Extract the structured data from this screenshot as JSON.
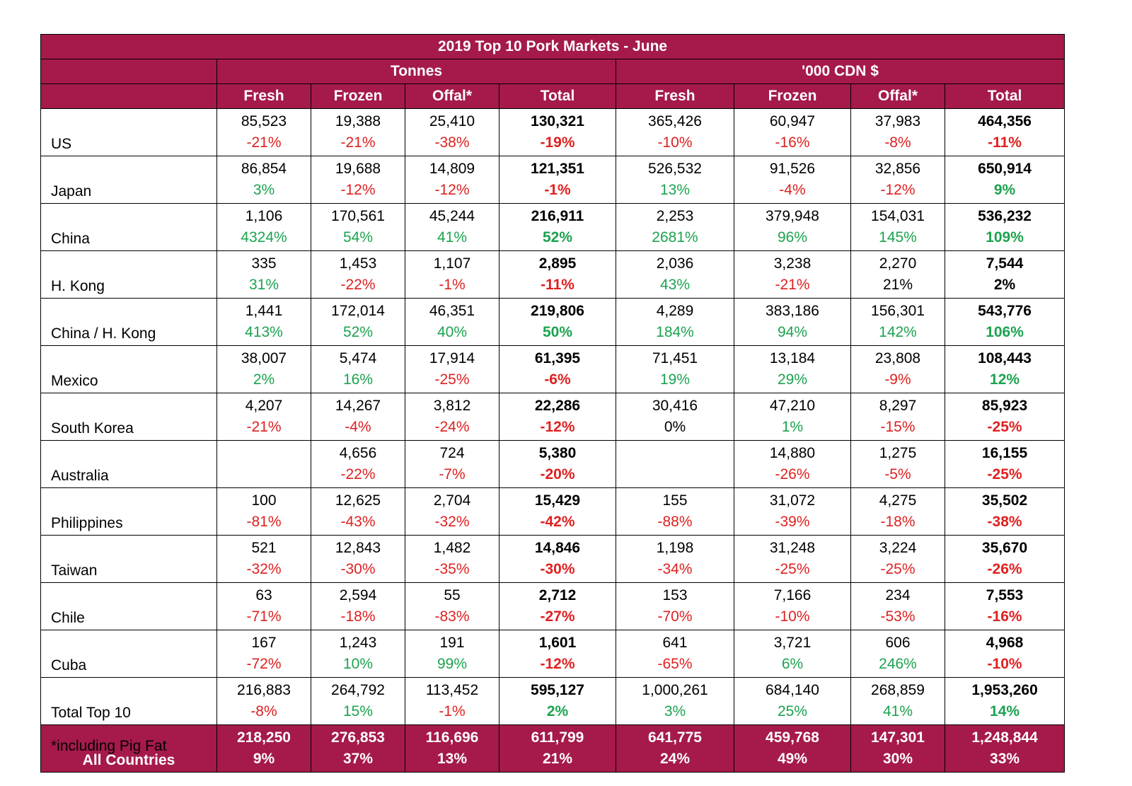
{
  "title": "2019 Top 10 Pork Markets - June",
  "groups": [
    "Tonnes",
    "'000 CDN $"
  ],
  "columns": [
    "Fresh",
    "Frozen",
    "Offal*",
    "Total",
    "Fresh",
    "Frozen",
    "Offal*",
    "Total"
  ],
  "colors": {
    "header_bg": "#A51A4B",
    "negative": "#E02020",
    "positive": "#1BA34F"
  },
  "rows": [
    {
      "country": "US",
      "cells": [
        {
          "v": "85,523",
          "p": "-21%",
          "s": "neg"
        },
        {
          "v": "19,388",
          "p": "-21%",
          "s": "neg"
        },
        {
          "v": "25,410",
          "p": "-38%",
          "s": "neg"
        },
        {
          "v": "130,321",
          "p": "-19%",
          "s": "neg"
        },
        {
          "v": "365,426",
          "p": "-10%",
          "s": "neg"
        },
        {
          "v": "60,947",
          "p": "-16%",
          "s": "neg"
        },
        {
          "v": "37,983",
          "p": "-8%",
          "s": "neg"
        },
        {
          "v": "464,356",
          "p": "-11%",
          "s": "neg"
        }
      ]
    },
    {
      "country": "Japan",
      "cells": [
        {
          "v": "86,854",
          "p": "3%",
          "s": "pos"
        },
        {
          "v": "19,688",
          "p": "-12%",
          "s": "neg"
        },
        {
          "v": "14,809",
          "p": "-12%",
          "s": "neg"
        },
        {
          "v": "121,351",
          "p": "-1%",
          "s": "neg"
        },
        {
          "v": "526,532",
          "p": "13%",
          "s": "pos"
        },
        {
          "v": "91,526",
          "p": "-4%",
          "s": "neg"
        },
        {
          "v": "32,856",
          "p": "-12%",
          "s": "neg"
        },
        {
          "v": "650,914",
          "p": "9%",
          "s": "pos"
        }
      ]
    },
    {
      "country": "China",
      "cells": [
        {
          "v": "1,106",
          "p": "4324%",
          "s": "pos"
        },
        {
          "v": "170,561",
          "p": "54%",
          "s": "pos"
        },
        {
          "v": "45,244",
          "p": "41%",
          "s": "pos"
        },
        {
          "v": "216,911",
          "p": "52%",
          "s": "pos"
        },
        {
          "v": "2,253",
          "p": "2681%",
          "s": "pos"
        },
        {
          "v": "379,948",
          "p": "96%",
          "s": "pos"
        },
        {
          "v": "154,031",
          "p": "145%",
          "s": "pos"
        },
        {
          "v": "536,232",
          "p": "109%",
          "s": "pos"
        }
      ]
    },
    {
      "country": "H. Kong",
      "cells": [
        {
          "v": "335",
          "p": "31%",
          "s": "pos"
        },
        {
          "v": "1,453",
          "p": "-22%",
          "s": "neg"
        },
        {
          "v": "1,107",
          "p": "-1%",
          "s": "neg"
        },
        {
          "v": "2,895",
          "p": "-11%",
          "s": "neg"
        },
        {
          "v": "2,036",
          "p": "43%",
          "s": "pos"
        },
        {
          "v": "3,238",
          "p": "-21%",
          "s": "neg"
        },
        {
          "v": "2,270",
          "p": "21%",
          "s": "neu"
        },
        {
          "v": "7,544",
          "p": "2%",
          "s": "neu"
        }
      ]
    },
    {
      "country": "China / H. Kong",
      "cells": [
        {
          "v": "1,441",
          "p": "413%",
          "s": "pos"
        },
        {
          "v": "172,014",
          "p": "52%",
          "s": "pos"
        },
        {
          "v": "46,351",
          "p": "40%",
          "s": "pos"
        },
        {
          "v": "219,806",
          "p": "50%",
          "s": "pos"
        },
        {
          "v": "4,289",
          "p": "184%",
          "s": "pos"
        },
        {
          "v": "383,186",
          "p": "94%",
          "s": "pos"
        },
        {
          "v": "156,301",
          "p": "142%",
          "s": "pos"
        },
        {
          "v": "543,776",
          "p": "106%",
          "s": "pos"
        }
      ]
    },
    {
      "country": "Mexico",
      "cells": [
        {
          "v": "38,007",
          "p": "2%",
          "s": "pos"
        },
        {
          "v": "5,474",
          "p": "16%",
          "s": "pos"
        },
        {
          "v": "17,914",
          "p": "-25%",
          "s": "neg"
        },
        {
          "v": "61,395",
          "p": "-6%",
          "s": "neg"
        },
        {
          "v": "71,451",
          "p": "19%",
          "s": "pos"
        },
        {
          "v": "13,184",
          "p": "29%",
          "s": "pos"
        },
        {
          "v": "23,808",
          "p": "-9%",
          "s": "neg"
        },
        {
          "v": "108,443",
          "p": "12%",
          "s": "pos"
        }
      ]
    },
    {
      "country": "South Korea",
      "cells": [
        {
          "v": "4,207",
          "p": "-21%",
          "s": "neg"
        },
        {
          "v": "14,267",
          "p": "-4%",
          "s": "neg"
        },
        {
          "v": "3,812",
          "p": "-24%",
          "s": "neg"
        },
        {
          "v": "22,286",
          "p": "-12%",
          "s": "neg"
        },
        {
          "v": "30,416",
          "p": "0%",
          "s": "neu"
        },
        {
          "v": "47,210",
          "p": "1%",
          "s": "pos"
        },
        {
          "v": "8,297",
          "p": "-15%",
          "s": "neg"
        },
        {
          "v": "85,923",
          "p": "-25%",
          "s": "neg"
        }
      ]
    },
    {
      "country": "Australia",
      "cells": [
        {
          "v": "",
          "p": "",
          "s": "neu"
        },
        {
          "v": "4,656",
          "p": "-22%",
          "s": "neg"
        },
        {
          "v": "724",
          "p": "-7%",
          "s": "neg"
        },
        {
          "v": "5,380",
          "p": "-20%",
          "s": "neg"
        },
        {
          "v": "",
          "p": "",
          "s": "neu"
        },
        {
          "v": "14,880",
          "p": "-26%",
          "s": "neg"
        },
        {
          "v": "1,275",
          "p": "-5%",
          "s": "neg"
        },
        {
          "v": "16,155",
          "p": "-25%",
          "s": "neg"
        }
      ]
    },
    {
      "country": "Philippines",
      "cells": [
        {
          "v": "100",
          "p": "-81%",
          "s": "neg"
        },
        {
          "v": "12,625",
          "p": "-43%",
          "s": "neg"
        },
        {
          "v": "2,704",
          "p": "-32%",
          "s": "neg"
        },
        {
          "v": "15,429",
          "p": "-42%",
          "s": "neg"
        },
        {
          "v": "155",
          "p": "-88%",
          "s": "neg"
        },
        {
          "v": "31,072",
          "p": "-39%",
          "s": "neg"
        },
        {
          "v": "4,275",
          "p": "-18%",
          "s": "neg"
        },
        {
          "v": "35,502",
          "p": "-38%",
          "s": "neg"
        }
      ]
    },
    {
      "country": "Taiwan",
      "cells": [
        {
          "v": "521",
          "p": "-32%",
          "s": "neg"
        },
        {
          "v": "12,843",
          "p": "-30%",
          "s": "neg"
        },
        {
          "v": "1,482",
          "p": "-35%",
          "s": "neg"
        },
        {
          "v": "14,846",
          "p": "-30%",
          "s": "neg"
        },
        {
          "v": "1,198",
          "p": "-34%",
          "s": "neg"
        },
        {
          "v": "31,248",
          "p": "-25%",
          "s": "neg"
        },
        {
          "v": "3,224",
          "p": "-25%",
          "s": "neg"
        },
        {
          "v": "35,670",
          "p": "-26%",
          "s": "neg"
        }
      ]
    },
    {
      "country": "Chile",
      "cells": [
        {
          "v": "63",
          "p": "-71%",
          "s": "neg"
        },
        {
          "v": "2,594",
          "p": "-18%",
          "s": "neg"
        },
        {
          "v": "55",
          "p": "-83%",
          "s": "neg"
        },
        {
          "v": "2,712",
          "p": "-27%",
          "s": "neg"
        },
        {
          "v": "153",
          "p": "-70%",
          "s": "neg"
        },
        {
          "v": "7,166",
          "p": "-10%",
          "s": "neg"
        },
        {
          "v": "234",
          "p": "-53%",
          "s": "neg"
        },
        {
          "v": "7,553",
          "p": "-16%",
          "s": "neg"
        }
      ]
    },
    {
      "country": "Cuba",
      "cells": [
        {
          "v": "167",
          "p": "-72%",
          "s": "neg"
        },
        {
          "v": "1,243",
          "p": "10%",
          "s": "pos"
        },
        {
          "v": "191",
          "p": "99%",
          "s": "pos"
        },
        {
          "v": "1,601",
          "p": "-12%",
          "s": "neg"
        },
        {
          "v": "641",
          "p": "-65%",
          "s": "neg"
        },
        {
          "v": "3,721",
          "p": "6%",
          "s": "pos"
        },
        {
          "v": "606",
          "p": "246%",
          "s": "pos"
        },
        {
          "v": "4,968",
          "p": "-10%",
          "s": "neg"
        }
      ]
    },
    {
      "country": "Total Top 10",
      "cells": [
        {
          "v": "216,883",
          "p": "-8%",
          "s": "neg"
        },
        {
          "v": "264,792",
          "p": "15%",
          "s": "pos"
        },
        {
          "v": "113,452",
          "p": "-1%",
          "s": "neg"
        },
        {
          "v": "595,127",
          "p": "2%",
          "s": "pos"
        },
        {
          "v": "1,000,261",
          "p": "3%",
          "s": "pos"
        },
        {
          "v": "684,140",
          "p": "25%",
          "s": "pos"
        },
        {
          "v": "268,859",
          "p": "41%",
          "s": "pos"
        },
        {
          "v": "1,953,260",
          "p": "14%",
          "s": "pos"
        }
      ]
    }
  ],
  "all_countries": {
    "country": "All Countries",
    "cells": [
      {
        "v": "218,250",
        "p": "9%"
      },
      {
        "v": "276,853",
        "p": "37%"
      },
      {
        "v": "116,696",
        "p": "13%"
      },
      {
        "v": "611,799",
        "p": "21%"
      },
      {
        "v": "641,775",
        "p": "24%"
      },
      {
        "v": "459,768",
        "p": "49%"
      },
      {
        "v": "147,301",
        "p": "30%"
      },
      {
        "v": "1,248,844",
        "p": "33%"
      }
    ]
  },
  "footnote": "*including Pig Fat"
}
